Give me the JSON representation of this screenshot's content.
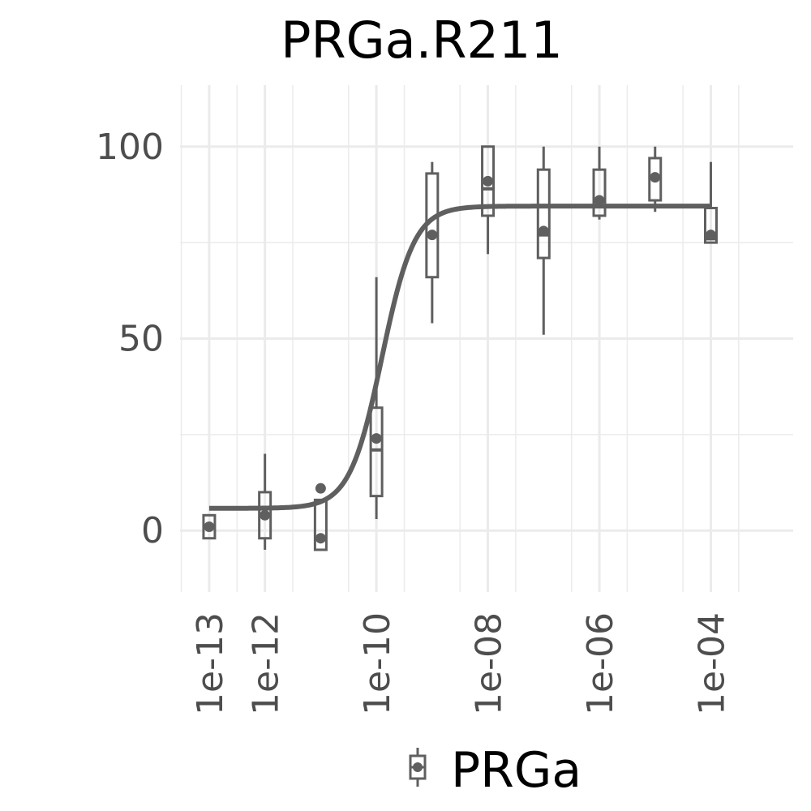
{
  "chart_data": {
    "type": "boxplot",
    "title": "PRGa.R211",
    "xlabel": "",
    "ylabel": "",
    "x_scale": "log10",
    "xlim": [
      3e-14,
      0.003
    ],
    "ylim": [
      -16,
      116
    ],
    "x_ticks": [
      1e-13,
      1e-12,
      1e-10,
      1e-08,
      1e-06,
      0.0001
    ],
    "x_tick_labels": [
      "1e-13",
      "1e-12",
      "1e-10",
      "1e-08",
      "1e-06",
      "1e-04"
    ],
    "y_ticks": [
      0,
      50,
      100
    ],
    "y_tick_labels": [
      "0",
      "50",
      "100"
    ],
    "grid": true,
    "legend": {
      "position": "bottom",
      "entries": [
        "PRGa"
      ]
    },
    "colors": {
      "series": "#5f5f5f",
      "grid": "#ebebeb",
      "tick_text": "#4d4d4d"
    },
    "series": [
      {
        "name": "PRGa",
        "boxes": [
          {
            "x": 1e-13,
            "whisker_low": -2,
            "q1": -2,
            "median": 1,
            "q3": 4,
            "whisker_high": 4,
            "mean": 1
          },
          {
            "x": 1e-12,
            "whisker_low": -5,
            "q1": -2,
            "median": 4,
            "q3": 10,
            "whisker_high": 20,
            "mean": 4
          },
          {
            "x": 1e-11,
            "whisker_low": -5,
            "q1": -5,
            "median": -2,
            "q3": 8,
            "whisker_high": 8,
            "mean": -2,
            "outliers": [
              11
            ]
          },
          {
            "x": 1e-10,
            "whisker_low": 3,
            "q1": 9,
            "median": 21,
            "q3": 32,
            "whisker_high": 66,
            "mean": 24
          },
          {
            "x": 1e-09,
            "whisker_low": 54,
            "q1": 66,
            "median": 77,
            "q3": 93,
            "whisker_high": 96,
            "mean": 77
          },
          {
            "x": 1e-08,
            "whisker_low": 72,
            "q1": 82,
            "median": 89,
            "q3": 100,
            "whisker_high": 100,
            "mean": 91
          },
          {
            "x": 1e-07,
            "whisker_low": 51,
            "q1": 71,
            "median": 77,
            "q3": 94,
            "whisker_high": 100,
            "mean": 78
          },
          {
            "x": 1e-06,
            "whisker_low": 81,
            "q1": 82,
            "median": 86,
            "q3": 94,
            "whisker_high": 100,
            "mean": 86
          },
          {
            "x": 1e-05,
            "whisker_low": 83,
            "q1": 86,
            "median": 92,
            "q3": 97,
            "whisker_high": 100,
            "mean": 92
          },
          {
            "x": 0.0001,
            "whisker_low": 75,
            "q1": 75,
            "median": 76,
            "q3": 84,
            "whisker_high": 96,
            "mean": 77
          }
        ],
        "fit": {
          "model": "4PL",
          "bottom": 5.8,
          "top": 84.5,
          "log_ec50": -9.9,
          "hill": 1.5,
          "x_range": [
            1e-13,
            0.0001
          ]
        }
      }
    ]
  }
}
